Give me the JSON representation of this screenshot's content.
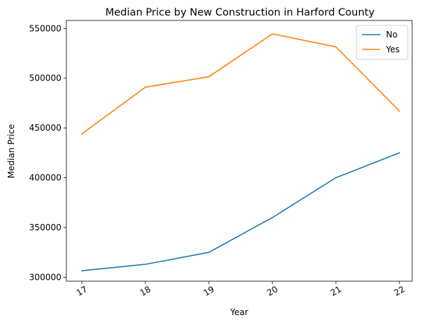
{
  "chart_data": {
    "type": "line",
    "title": "Median Price by New Construction in Harford County",
    "xlabel": "Year",
    "ylabel": "Median Price",
    "x": [
      "17",
      "18",
      "19",
      "20",
      "21",
      "22"
    ],
    "yticks": [
      300000,
      350000,
      400000,
      450000,
      500000,
      550000
    ],
    "ylim": [
      296000,
      558000
    ],
    "grid": false,
    "legend_position": "top-right",
    "series": [
      {
        "name": "No",
        "color": "#1f77b4",
        "values": [
          306500,
          313000,
          325000,
          360000,
          400000,
          425000
        ]
      },
      {
        "name": "Yes",
        "color": "#ff7f0e",
        "values": [
          444000,
          491000,
          501500,
          544500,
          531500,
          467000
        ]
      }
    ]
  }
}
